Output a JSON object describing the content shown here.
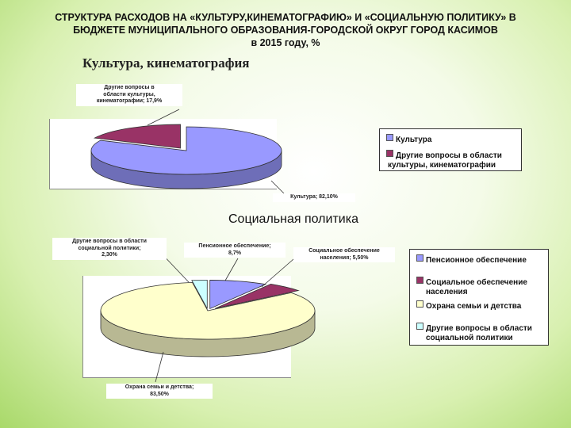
{
  "title": {
    "line1": "СТРУКТУРА РАСХОДОВ НА «КУЛЬТУРУ,КИНЕМАТОГРАФИЮ» И «СОЦИАЛЬНУЮ ПОЛИТИКУ» В",
    "line2": "БЮДЖЕТЕ МУНИЦИПАЛЬНОГО ОБРАЗОВАНИЯ-ГОРОДСКОЙ ОКРУГ ГОРОД КАСИМОВ",
    "line3": "в 2015 году, %"
  },
  "chart_data": [
    {
      "type": "pie",
      "title": "Культура, кинематография",
      "categories": [
        "Культура",
        "Другие вопросы в области культуры, кинематографии"
      ],
      "values": [
        82.1,
        17.9
      ],
      "colors": [
        "#9999ff",
        "#993366"
      ],
      "data_labels": [
        "Культура; 82,10%",
        "Другие вопросы в области культуры, кинематографии; 17,9%"
      ],
      "legend": [
        "Культура",
        "Другие вопросы в области культуры, кинематографии"
      ],
      "legend_position": "right"
    },
    {
      "type": "pie",
      "title": "Социальная политика",
      "categories": [
        "Пенсионное обеспечение",
        "Социальное обеспечение населения",
        "Охрана семьи и детства",
        "Другие вопросы в области социальной политики"
      ],
      "values": [
        8.7,
        5.5,
        83.5,
        2.3
      ],
      "colors": [
        "#9999ff",
        "#993366",
        "#ffffcc",
        "#ccffff"
      ],
      "data_labels": [
        "Пенсионное обеспечение; 8,7%",
        "Социальное обеспечение населения; 5,50%",
        "Охрана семьи и детства; 83,50%",
        "Другие вопросы в области социальной политики; 2,30%"
      ],
      "legend": [
        "Пенсионное обеспечение",
        "Социальное обеспечение населения",
        "Охрана семьи и детства",
        "Другие вопросы в области социальной политики"
      ],
      "legend_position": "right"
    }
  ]
}
